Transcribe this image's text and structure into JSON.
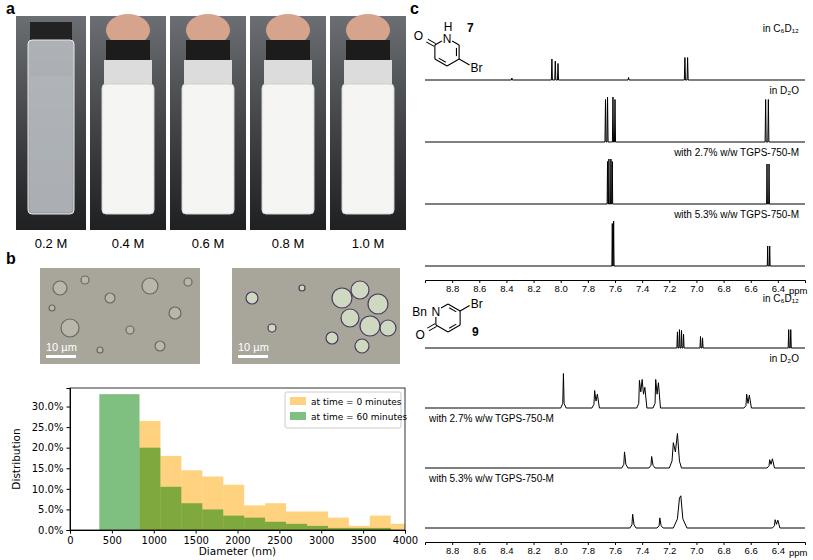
{
  "figure": {
    "panel_labels": [
      "a",
      "b",
      "c"
    ],
    "photo_captions": [
      "0.2 M",
      "0.4 M",
      "0.6 M",
      "0.8 M",
      "1.0 M"
    ],
    "scale_bars": [
      "10 µm",
      "10 µm"
    ]
  },
  "chart_data": [
    {
      "type": "histogram",
      "xlabel": "Diameter (nm)",
      "ylabel": "Distribution",
      "xlim": [
        0,
        4000
      ],
      "ylim": [
        0,
        34.5
      ],
      "xticks": [
        0,
        500,
        1000,
        1500,
        2000,
        2500,
        3000,
        3500,
        4000
      ],
      "yticks": [
        {
          "value": 0,
          "label": "0.0%"
        },
        {
          "value": 5,
          "label": "5.0%"
        },
        {
          "value": 10,
          "label": "10.0%"
        },
        {
          "value": 15,
          "label": "15.0%"
        },
        {
          "value": 20,
          "label": "20.0%"
        },
        {
          "value": 25,
          "label": "25.0%"
        },
        {
          "value": 30,
          "label": "30.0%"
        }
      ],
      "legend": "upper right",
      "series": [
        {
          "name": "at time = 0 minutes",
          "color": "orange",
          "bins": [
            830,
            1080,
            1330,
            1580,
            1830,
            2080,
            2330,
            2580,
            2830,
            3080,
            3330,
            3580,
            3830,
            4080
          ],
          "values": [
            26.5,
            18,
            14.5,
            13,
            11,
            6,
            6.5,
            4.5,
            4.5,
            3,
            1,
            3.5,
            1.5
          ]
        },
        {
          "name": "at time = 60 minutes",
          "color": "green",
          "bins": [
            350,
            830,
            1080,
            1330,
            1580,
            1830,
            2080,
            2330,
            2580,
            2830,
            3080,
            3330,
            3580,
            3830
          ],
          "values": [
            33,
            20,
            10.5,
            6.5,
            5,
            3.5,
            3,
            2,
            1.5,
            1,
            0.5,
            0.5,
            0.5
          ]
        }
      ]
    },
    {
      "type": "line",
      "compound": "7",
      "structure_labels": [
        "O",
        "N",
        "H",
        "Br"
      ],
      "xlabel": "ppm",
      "xlim": [
        9.0,
        6.2
      ],
      "ylim": [
        0,
        1
      ],
      "xticks": [
        8.8,
        8.6,
        8.4,
        8.2,
        {
          "value": 8,
          "label": "8.0"
        },
        7.8,
        7.6,
        7.4,
        7.2,
        {
          "value": 7,
          "label": "7.0"
        },
        6.8,
        6.6,
        6.4
      ],
      "tick_labels": "x",
      "series": [
        {
          "name": "in C₆D₁₂",
          "color": "black",
          "x": [
            9.0,
            8.364,
            8.36,
            8.356,
            8.069,
            8.065,
            8.061,
            8.044,
            8.04,
            8.036,
            8.024,
            8.02,
            8.016,
            7.504,
            7.5,
            7.496,
            7.089,
            7.085,
            7.081,
            7.069,
            7.065,
            7.061,
            6.2
          ],
          "values": [
            0,
            0,
            0.04,
            0,
            0,
            0.42,
            0,
            0,
            0.38,
            0,
            0,
            0.33,
            0,
            0,
            0.05,
            0,
            0,
            0.45,
            0,
            0,
            0.45,
            0,
            0
          ]
        },
        {
          "name": "in D₂O",
          "color": "black",
          "x": [
            9.0,
            7.674,
            7.67,
            7.666,
            7.659,
            7.655,
            7.651,
            7.619,
            7.615,
            7.611,
            7.604,
            7.6,
            7.596,
            6.494,
            6.49,
            6.486,
            6.474,
            6.47,
            6.466,
            6.2
          ],
          "values": [
            0,
            0,
            0.85,
            0,
            0,
            0.9,
            0,
            0,
            0.9,
            0,
            0,
            0.85,
            0,
            0,
            0.85,
            0,
            0,
            0.85,
            0,
            0
          ]
        },
        {
          "name": "with 2.7% w/w TGPS-750-M",
          "color": "black",
          "x": [
            9.0,
            7.658,
            7.655,
            7.652,
            7.648,
            7.645,
            7.642,
            7.633,
            7.63,
            7.627,
            7.623,
            7.62,
            7.617,
            6.483,
            6.48,
            6.477,
            6.468,
            6.465,
            6.462,
            6.2
          ],
          "values": [
            0,
            0,
            0.85,
            0,
            0,
            0.9,
            0,
            0,
            0.9,
            0,
            0,
            0.85,
            0,
            0,
            0.8,
            0,
            0,
            0.8,
            0,
            0
          ]
        },
        {
          "name": "with 5.3% w/w TGPS-750-M",
          "color": "black",
          "x": [
            9.0,
            7.623,
            7.62,
            7.617,
            7.613,
            7.61,
            7.607,
            6.478,
            6.475,
            6.472,
            6.463,
            6.46,
            6.457,
            6.2
          ],
          "values": [
            0,
            0,
            0.85,
            0,
            0,
            0.9,
            0,
            0,
            0.4,
            0,
            0,
            0.4,
            0,
            0
          ]
        }
      ]
    },
    {
      "type": "line",
      "compound": "9",
      "structure_labels": [
        "Bn",
        "N",
        "Br",
        "O"
      ],
      "xlabel": "ppm",
      "xlim": [
        9.0,
        6.2
      ],
      "ylim": [
        0,
        1
      ],
      "xticks": [
        8.8,
        8.6,
        8.4,
        8.2,
        {
          "value": 8,
          "label": "8.0"
        },
        7.8,
        7.6,
        7.4,
        7.2,
        {
          "value": 7,
          "label": "7.0"
        },
        6.8,
        6.6,
        6.4
      ],
      "tick_labels": "x",
      "series": [
        {
          "name": "in C₆D₁₂",
          "color": "black",
          "x": [
            9.0,
            7.144,
            7.14,
            7.136,
            7.129,
            7.125,
            7.121,
            7.114,
            7.11,
            7.106,
            7.099,
            7.095,
            7.091,
            6.974,
            6.97,
            6.966,
            6.959,
            6.955,
            6.951,
            6.324,
            6.32,
            6.316,
            6.309,
            6.305,
            6.301,
            6.2
          ],
          "values": [
            0,
            0,
            0.35,
            0,
            0,
            0.4,
            0,
            0,
            0.38,
            0,
            0,
            0.3,
            0,
            0,
            0.25,
            0,
            0,
            0.22,
            0,
            0,
            0.4,
            0,
            0,
            0.4,
            0,
            0
          ]
        },
        {
          "name": "in D₂O",
          "color": "black",
          "x": [
            9.0,
            8.0,
            7.985,
            7.98,
            7.975,
            7.96,
            7.77,
            7.755,
            7.75,
            7.74,
            7.73,
            7.715,
            7.44,
            7.425,
            7.42,
            7.41,
            7.4,
            7.39,
            7.38,
            7.365,
            7.32,
            7.305,
            7.3,
            7.29,
            7.28,
            7.265,
            6.65,
            6.635,
            6.63,
            6.62,
            6.61,
            6.595,
            6.2
          ],
          "values": [
            0,
            0,
            0.1,
            0.75,
            0.1,
            0,
            0,
            0.08,
            0.38,
            0.15,
            0.3,
            0,
            0,
            0.1,
            0.6,
            0.35,
            0.62,
            0.3,
            0.45,
            0,
            0,
            0.1,
            0.62,
            0.3,
            0.55,
            0,
            0,
            0.05,
            0.3,
            0.1,
            0.28,
            0,
            0
          ]
        },
        {
          "name": "with 2.7% w/w TGPS-750-M",
          "color": "black",
          "x": [
            9.0,
            7.55,
            7.535,
            7.53,
            7.52,
            7.505,
            7.35,
            7.335,
            7.33,
            7.32,
            7.305,
            7.2,
            7.18,
            7.17,
            7.155,
            7.14,
            7.125,
            7.11,
            6.48,
            6.465,
            6.46,
            6.45,
            6.44,
            6.425,
            6.2
          ],
          "values": [
            0,
            0,
            0.08,
            0.35,
            0.08,
            0,
            0,
            0.06,
            0.25,
            0.06,
            0,
            0,
            0.15,
            0.55,
            0.35,
            0.75,
            0.15,
            0,
            0,
            0.05,
            0.18,
            0.08,
            0.2,
            0,
            0
          ]
        },
        {
          "name": "with 5.3% w/w TGPS-750-M",
          "color": "black",
          "x": [
            9.0,
            7.49,
            7.475,
            7.47,
            7.46,
            7.445,
            7.29,
            7.275,
            7.27,
            7.26,
            7.245,
            7.17,
            7.14,
            7.125,
            7.115,
            7.1,
            7.07,
            6.44,
            6.425,
            6.42,
            6.41,
            6.4,
            6.385,
            6.2
          ],
          "values": [
            0,
            0,
            0.07,
            0.3,
            0.07,
            0,
            0,
            0.05,
            0.22,
            0.05,
            0,
            0,
            0.2,
            0.65,
            0.7,
            0.2,
            0,
            0,
            0.05,
            0.18,
            0.08,
            0.17,
            0,
            0
          ]
        }
      ]
    }
  ]
}
